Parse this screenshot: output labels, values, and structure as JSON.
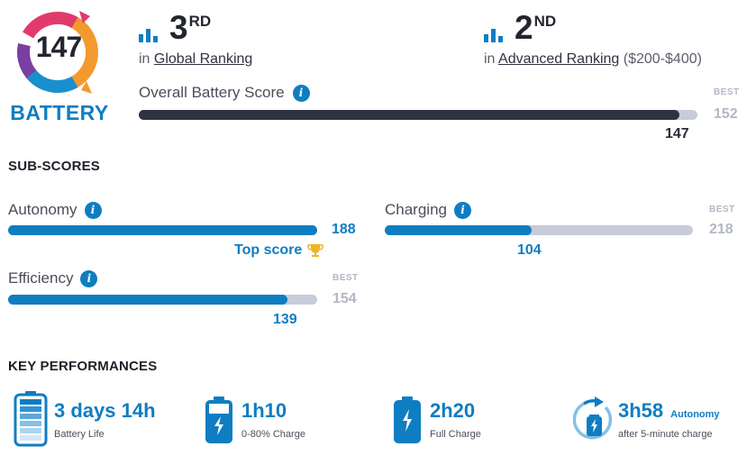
{
  "badge": {
    "score": "147",
    "category": "BATTERY"
  },
  "global": {
    "rank": "3",
    "suffix": "RD",
    "prefix": "in",
    "link": "Global Ranking"
  },
  "advanced": {
    "rank": "2",
    "suffix": "ND",
    "prefix": "in",
    "link": "Advanced Ranking",
    "range": "($200-$400)"
  },
  "overall": {
    "label": "Overall Battery Score",
    "value": 147,
    "best": 152,
    "best_label": "BEST",
    "fill_fraction": 0.967
  },
  "subscores": {
    "title": "SUB-SCORES",
    "autonomy": {
      "label": "Autonomy",
      "value": 188,
      "fill_fraction": 1.0,
      "top_label": "Top score"
    },
    "charging": {
      "label": "Charging",
      "value": 104,
      "best": 218,
      "best_label": "BEST",
      "fill_fraction": 0.477
    },
    "efficiency": {
      "label": "Efficiency",
      "value": 139,
      "best": 154,
      "best_label": "BEST",
      "fill_fraction": 0.903
    }
  },
  "key_performances": {
    "title": "KEY PERFORMANCES",
    "items": [
      {
        "value": "3 days 14h",
        "label": "Battery Life",
        "icon": "battery-full-icon"
      },
      {
        "value": "1h10",
        "label": "0-80% Charge",
        "icon": "battery-charging-icon"
      },
      {
        "value": "2h20",
        "label": "Full Charge",
        "icon": "battery-charging-icon"
      },
      {
        "value": "3h58",
        "tag": "Autonomy",
        "label": "after 5-minute charge",
        "icon": "quick-charge-icon"
      }
    ]
  },
  "colors": {
    "accent": "#0f7dc2",
    "dark_bar": "#2f3240",
    "track": "#c7cbda",
    "best": "#b3b7c6",
    "trophy": "#f0b323"
  }
}
